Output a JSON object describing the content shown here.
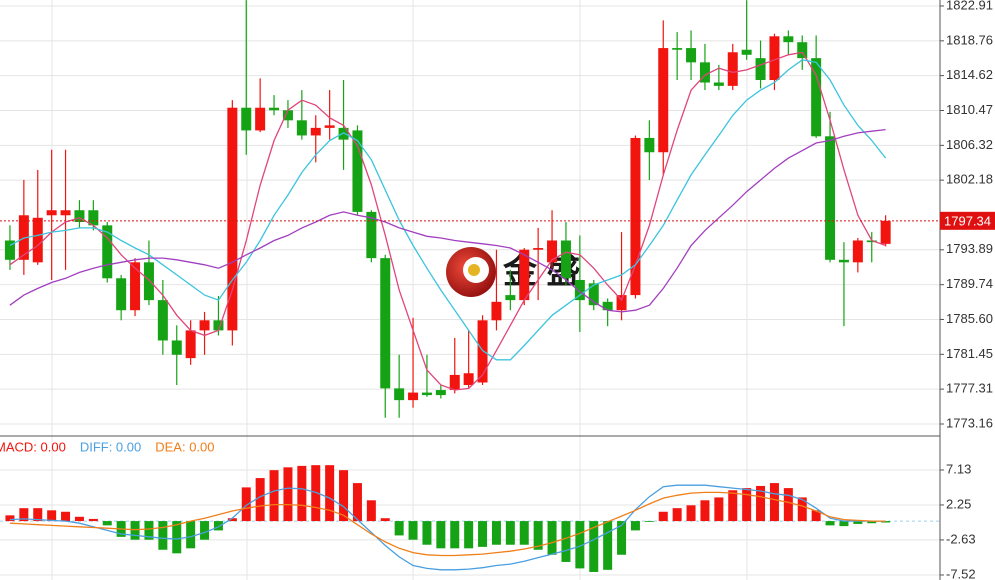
{
  "chart_data": [
    {
      "type": "candlestick",
      "categories": [
        null,
        null,
        null,
        null,
        null,
        null,
        null,
        null,
        null,
        null,
        null,
        null,
        null,
        null,
        null,
        null,
        null,
        null,
        null,
        null,
        null,
        null,
        null,
        null,
        null,
        null,
        null,
        null,
        null,
        null,
        null,
        null,
        null,
        null,
        null,
        null,
        null,
        null,
        null,
        null,
        null,
        null,
        null,
        null,
        null,
        null,
        null,
        null,
        null,
        null,
        null,
        null,
        null,
        null,
        null,
        null,
        null,
        null,
        null,
        null,
        null,
        null,
        null,
        null
      ],
      "open": [
        1795.0,
        1792.7,
        1792.4,
        1798.0,
        1798.0,
        1798.6,
        1798.6,
        1796.8,
        1790.5,
        1786.7,
        1792.4,
        1787.9,
        1783.1,
        1781.0,
        1784.3,
        1785.5,
        1784.3,
        1810.8,
        1808.1,
        1810.8,
        1810.5,
        1809.3,
        1807.5,
        1808.4,
        1808.4,
        1808.1,
        1798.4,
        1792.9,
        1777.4,
        1776.0,
        1776.9,
        1777.2,
        1777.2,
        1777.8,
        1778.1,
        1785.5,
        1788.5,
        1787.9,
        1793.9,
        1792.4,
        1795.0,
        1790.3,
        1789.9,
        1787.7,
        1786.7,
        1788.5,
        1807.2,
        1805.5,
        1817.9,
        1817.9,
        1816.2,
        1813.8,
        1813.4,
        1817.7,
        1816.7,
        1814.1,
        1819.3,
        1818.6,
        1816.7,
        1807.4,
        1792.7,
        1792.4,
        1795.0,
        1794.6
      ],
      "high": [
        1796.8,
        1802.2,
        1803.4,
        1805.8,
        1805.8,
        1799.8,
        1799.8,
        1797.2,
        1790.9,
        1792.9,
        1795.0,
        1790.3,
        1784.9,
        1785.5,
        1786.5,
        1788.4,
        1811.7,
        1823.6,
        1814.3,
        1812.3,
        1811.7,
        1812.9,
        1809.9,
        1812.9,
        1814.1,
        1808.7,
        1798.6,
        1793.3,
        1781.4,
        1785.8,
        1781.4,
        1777.8,
        1783.4,
        1784.3,
        1786.1,
        1793.9,
        1791.5,
        1794.1,
        1796.5,
        1798.6,
        1797.2,
        1795.6,
        1790.3,
        1788.1,
        1796.0,
        1807.5,
        1809.3,
        1821.2,
        1819.8,
        1820.0,
        1818.4,
        1815.9,
        1818.4,
        1823.6,
        1818.8,
        1819.6,
        1820.0,
        1819.4,
        1819.4,
        1810.3,
        1794.8,
        1795.3,
        1796.0,
        1798.0
      ],
      "low": [
        1791.5,
        1790.9,
        1792.1,
        1790.3,
        1791.5,
        1796.5,
        1796.2,
        1790.0,
        1785.5,
        1786.0,
        1787.3,
        1781.4,
        1777.8,
        1780.2,
        1781.4,
        1783.7,
        1782.5,
        1805.2,
        1807.9,
        1809.9,
        1808.4,
        1807.0,
        1804.3,
        1807.0,
        1803.4,
        1798.0,
        1792.4,
        1773.9,
        1773.9,
        1775.1,
        1776.4,
        1776.2,
        1776.8,
        1777.5,
        1777.8,
        1784.3,
        1786.7,
        1787.3,
        1787.9,
        1791.7,
        1789.7,
        1784.1,
        1786.7,
        1784.8,
        1785.5,
        1788.1,
        1802.2,
        1802.8,
        1814.1,
        1814.1,
        1812.9,
        1812.9,
        1812.9,
        1816.5,
        1813.1,
        1812.9,
        1817.1,
        1815.3,
        1807.2,
        1792.4,
        1784.8,
        1791.2,
        1792.4,
        1794.3
      ],
      "close": [
        1792.7,
        1798.0,
        1797.7,
        1798.6,
        1798.6,
        1797.2,
        1796.8,
        1790.5,
        1786.7,
        1792.4,
        1787.9,
        1783.1,
        1781.4,
        1784.3,
        1785.5,
        1784.3,
        1810.8,
        1808.1,
        1810.8,
        1810.5,
        1809.3,
        1807.5,
        1808.4,
        1808.7,
        1807.0,
        1798.4,
        1792.9,
        1777.4,
        1776.0,
        1776.9,
        1776.6,
        1776.6,
        1779.0,
        1779.2,
        1785.5,
        1787.7,
        1787.9,
        1793.9,
        1794.1,
        1795.0,
        1790.5,
        1787.9,
        1787.3,
        1786.7,
        1788.5,
        1807.2,
        1805.5,
        1817.9,
        1817.7,
        1816.2,
        1813.8,
        1813.4,
        1817.4,
        1817.1,
        1814.1,
        1819.3,
        1818.6,
        1816.7,
        1807.4,
        1792.7,
        1792.4,
        1795.0,
        1794.8,
        1797.34
      ],
      "up_color": "#f2140f",
      "down_color": "#15a315",
      "series": [
        {
          "color": "#e0457b",
          "values": [
            1792.1,
            1793.3,
            1794.4,
            1796.0,
            1797.2,
            1797.7,
            1796.8,
            1795.3,
            1793.3,
            1791.7,
            1790.3,
            1788.5,
            1786.1,
            1784.3,
            1783.7,
            1784.3,
            1789.1,
            1795.0,
            1801.6,
            1806.9,
            1810.5,
            1811.7,
            1811.1,
            1809.6,
            1808.7,
            1806.3,
            1801.6,
            1795.6,
            1789.1,
            1784.3,
            1779.6,
            1777.8,
            1777.2,
            1777.4,
            1779.0,
            1781.9,
            1784.9,
            1787.9,
            1790.3,
            1792.7,
            1793.6,
            1793.3,
            1791.7,
            1789.7,
            1787.9,
            1792.1,
            1796.8,
            1802.8,
            1808.1,
            1812.9,
            1814.7,
            1815.5,
            1815.0,
            1815.3,
            1815.9,
            1816.5,
            1817.1,
            1817.4,
            1814.7,
            1809.3,
            1803.4,
            1798.0,
            1795.0,
            1794.4
          ]
        },
        {
          "color": "#3cc4de",
          "values": [
            1794.4,
            1795.3,
            1795.6,
            1796.0,
            1796.2,
            1796.5,
            1796.5,
            1796.0,
            1795.0,
            1794.1,
            1793.3,
            1792.1,
            1790.9,
            1789.7,
            1788.5,
            1787.9,
            1790.3,
            1792.4,
            1795.0,
            1798.0,
            1800.4,
            1803.1,
            1805.2,
            1806.9,
            1807.8,
            1806.9,
            1804.6,
            1801.0,
            1797.4,
            1794.4,
            1791.7,
            1789.1,
            1786.7,
            1784.3,
            1781.9,
            1780.8,
            1780.8,
            1782.5,
            1784.3,
            1786.1,
            1787.3,
            1788.5,
            1789.7,
            1790.3,
            1790.9,
            1792.1,
            1794.4,
            1796.8,
            1799.8,
            1802.8,
            1805.2,
            1807.5,
            1809.9,
            1811.7,
            1812.9,
            1813.8,
            1815.3,
            1816.5,
            1816.2,
            1814.1,
            1811.1,
            1808.7,
            1806.9,
            1804.8
          ]
        },
        {
          "color": "#a23fc0",
          "values": [
            1787.3,
            1788.5,
            1789.3,
            1790.0,
            1790.5,
            1791.2,
            1791.7,
            1792.1,
            1792.4,
            1792.7,
            1792.9,
            1792.9,
            1792.7,
            1792.4,
            1792.1,
            1791.7,
            1792.4,
            1793.3,
            1794.1,
            1795.0,
            1795.6,
            1796.5,
            1797.2,
            1798.0,
            1798.4,
            1798.0,
            1797.7,
            1797.2,
            1796.5,
            1796.0,
            1795.5,
            1795.3,
            1795.0,
            1794.8,
            1794.6,
            1794.4,
            1794.1,
            1793.3,
            1792.4,
            1791.5,
            1790.3,
            1788.9,
            1787.7,
            1786.7,
            1786.5,
            1786.7,
            1787.3,
            1789.3,
            1791.7,
            1794.4,
            1796.2,
            1797.7,
            1799.2,
            1800.8,
            1802.2,
            1803.6,
            1804.8,
            1805.7,
            1806.6,
            1806.9,
            1807.4,
            1807.8,
            1808.0,
            1808.2
          ]
        }
      ],
      "last_price": 1797.34,
      "ylim": [
        1771.85,
        1823.62
      ],
      "yticks": [
        1822.91,
        1818.76,
        1814.62,
        1810.47,
        1806.32,
        1802.18,
        1793.89,
        1789.74,
        {
          "value": 1785.6,
          "label": "1785.60"
        },
        1781.45,
        1777.31,
        1773.16
      ],
      "grid": true,
      "watermark": "金 盛"
    },
    {
      "type": "macd",
      "series": [
        {
          "name": "MACD: 0.00",
          "color": "#f2140f",
          "negative_color": "#15a315",
          "kind": "bar",
          "values": [
            0.8,
            1.8,
            1.8,
            1.5,
            1.3,
            0.6,
            0.3,
            -0.6,
            -2.2,
            -2.6,
            -2.6,
            -4.0,
            -4.5,
            -3.8,
            -2.6,
            -1.3,
            0.4,
            4.7,
            6.0,
            7.1,
            7.5,
            7.7,
            7.8,
            7.8,
            7.1,
            5.3,
            2.9,
            0.4,
            -2.0,
            -2.6,
            -3.3,
            -3.8,
            -3.8,
            -3.8,
            -3.6,
            -3.3,
            -3.3,
            -3.3,
            -4.0,
            -4.7,
            -5.7,
            -6.6,
            -7.1,
            -6.8,
            -4.7,
            -1.3,
            -0.1,
            1.3,
            1.8,
            2.2,
            2.9,
            3.3,
            4.3,
            4.6,
            4.9,
            5.3,
            4.6,
            3.3,
            1.5,
            -0.6,
            -0.7,
            -0.4,
            -0.3,
            -0.2
          ]
        },
        {
          "name": "DIFF: 0.00",
          "color": "#4a9fe0",
          "kind": "line",
          "values": [
            0.2,
            0.3,
            0.2,
            0.1,
            0.0,
            -0.3,
            -0.8,
            -1.3,
            -1.8,
            -2.0,
            -2.2,
            -2.4,
            -2.5,
            -2.2,
            -1.6,
            -0.8,
            0.4,
            2.2,
            3.4,
            4.2,
            4.6,
            4.5,
            4.0,
            3.2,
            2.0,
            0.2,
            -1.6,
            -3.4,
            -5.0,
            -6.2,
            -6.6,
            -6.8,
            -6.8,
            -6.7,
            -6.5,
            -6.2,
            -6.0,
            -5.6,
            -5.1,
            -4.6,
            -4.1,
            -3.5,
            -2.6,
            -1.6,
            -0.6,
            1.6,
            3.4,
            4.8,
            5.0,
            5.0,
            5.0,
            4.8,
            4.6,
            4.4,
            4.2,
            3.8,
            3.6,
            3.0,
            1.8,
            0.4,
            0.0,
            0.0,
            0.0,
            0.0
          ]
        },
        {
          "name": "DEA: 0.00",
          "color": "#f07f1a",
          "kind": "line",
          "values": [
            -0.3,
            -0.4,
            -0.5,
            -0.6,
            -0.7,
            -0.8,
            -0.9,
            -1.0,
            -1.1,
            -1.2,
            -1.1,
            -0.9,
            -0.5,
            0.0,
            0.4,
            0.9,
            1.4,
            1.8,
            2.1,
            2.3,
            2.3,
            2.2,
            1.9,
            1.5,
            0.8,
            -0.5,
            -1.8,
            -2.9,
            -3.8,
            -4.4,
            -4.7,
            -4.8,
            -4.8,
            -4.7,
            -4.6,
            -4.4,
            -4.2,
            -3.9,
            -3.5,
            -3.0,
            -2.4,
            -1.7,
            -0.9,
            -0.1,
            0.7,
            1.5,
            2.4,
            3.2,
            3.6,
            3.9,
            4.0,
            4.0,
            3.9,
            3.7,
            3.4,
            3.0,
            2.6,
            2.1,
            1.4,
            0.6,
            0.2,
            0.1,
            0.0,
            0.0
          ]
        }
      ],
      "ylim": [
        -8.22,
        11.73
      ],
      "yticks": [
        7.13,
        2.25,
        -2.63,
        -7.52
      ],
      "grid": true
    }
  ]
}
